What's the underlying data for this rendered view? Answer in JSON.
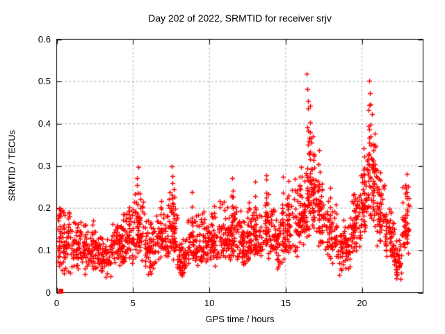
{
  "chart_data": {
    "type": "scatter",
    "title": "Day 202 of 2022, SRMTID for receiver srjv",
    "xlabel": "GPS time / hours",
    "ylabel": "SRMTID / TECUs",
    "xlim": [
      0,
      24
    ],
    "ylim": [
      0,
      0.6
    ],
    "xtick_values": [
      0,
      5,
      10,
      15,
      20
    ],
    "xtick_labels": [
      "0",
      "5",
      "10",
      "15",
      "20"
    ],
    "ytick_values": [
      0,
      0.1,
      0.2,
      0.3,
      0.4,
      0.5,
      0.6
    ],
    "ytick_labels": [
      "0",
      "0.1",
      "0.2",
      "0.3",
      "0.4",
      "0.5",
      "0.6"
    ],
    "grid": "dashed",
    "legend": "none",
    "marker": "plus",
    "marker_color": "#ff0000",
    "grid_color": "#a6a6a6",
    "axis_color": "#000000",
    "background_color": "#ffffff",
    "origin_point": {
      "x": 0.25,
      "y": 0.004,
      "marker": "filled-square"
    },
    "seed": 7,
    "band_bins_fields": [
      "x_start",
      "x_end",
      "count",
      "y_min",
      "y_max",
      "y_mode"
    ],
    "band_bins": [
      [
        0.05,
        0.35,
        25,
        0.05,
        0.22,
        0.1
      ],
      [
        0.35,
        1.0,
        50,
        0.04,
        0.2,
        0.09
      ],
      [
        1.0,
        2.0,
        70,
        0.04,
        0.18,
        0.09
      ],
      [
        2.0,
        3.0,
        70,
        0.04,
        0.17,
        0.08
      ],
      [
        3.0,
        3.6,
        40,
        0.03,
        0.14,
        0.08
      ],
      [
        3.6,
        4.4,
        55,
        0.05,
        0.18,
        0.1
      ],
      [
        4.4,
        5.1,
        50,
        0.06,
        0.22,
        0.12
      ],
      [
        5.1,
        5.7,
        45,
        0.06,
        0.26,
        0.13
      ],
      [
        5.7,
        6.5,
        55,
        0.04,
        0.18,
        0.09
      ],
      [
        6.5,
        7.3,
        55,
        0.06,
        0.22,
        0.11
      ],
      [
        7.3,
        7.9,
        45,
        0.06,
        0.26,
        0.12
      ],
      [
        7.9,
        8.6,
        45,
        0.03,
        0.15,
        0.08
      ],
      [
        8.6,
        9.6,
        70,
        0.05,
        0.2,
        0.1
      ],
      [
        9.6,
        10.6,
        70,
        0.06,
        0.2,
        0.11
      ],
      [
        10.6,
        11.4,
        60,
        0.07,
        0.22,
        0.12
      ],
      [
        11.4,
        11.8,
        35,
        0.08,
        0.24,
        0.14
      ],
      [
        11.8,
        12.6,
        60,
        0.06,
        0.2,
        0.11
      ],
      [
        12.6,
        13.5,
        65,
        0.07,
        0.21,
        0.12
      ],
      [
        13.5,
        14.1,
        45,
        0.07,
        0.24,
        0.13
      ],
      [
        14.1,
        15.0,
        60,
        0.05,
        0.22,
        0.11
      ],
      [
        15.0,
        15.9,
        60,
        0.08,
        0.28,
        0.14
      ],
      [
        15.9,
        16.4,
        45,
        0.1,
        0.32,
        0.17
      ],
      [
        16.4,
        17.0,
        50,
        0.12,
        0.38,
        0.2
      ],
      [
        17.0,
        17.6,
        45,
        0.1,
        0.32,
        0.17
      ],
      [
        17.6,
        18.4,
        55,
        0.06,
        0.24,
        0.12
      ],
      [
        18.4,
        19.2,
        55,
        0.04,
        0.18,
        0.1
      ],
      [
        19.2,
        19.9,
        55,
        0.08,
        0.26,
        0.15
      ],
      [
        19.9,
        20.3,
        35,
        0.12,
        0.34,
        0.2
      ],
      [
        20.3,
        20.9,
        45,
        0.15,
        0.42,
        0.24
      ],
      [
        20.9,
        21.5,
        45,
        0.1,
        0.3,
        0.18
      ],
      [
        21.5,
        22.1,
        45,
        0.06,
        0.22,
        0.12
      ],
      [
        22.1,
        22.6,
        35,
        0.03,
        0.14,
        0.08
      ],
      [
        22.6,
        23.1,
        35,
        0.08,
        0.26,
        0.15
      ]
    ],
    "stacks_fields": [
      "x",
      "y_bottom",
      "y_top",
      "count"
    ],
    "stacks": [
      [
        0.15,
        0.07,
        0.21,
        8
      ],
      [
        0.45,
        0.08,
        0.2,
        7
      ],
      [
        1.35,
        0.05,
        0.16,
        7
      ],
      [
        2.4,
        0.07,
        0.19,
        7
      ],
      [
        3.0,
        0.05,
        0.13,
        6
      ],
      [
        4.3,
        0.08,
        0.2,
        8
      ],
      [
        4.75,
        0.1,
        0.22,
        7
      ],
      [
        5.3,
        0.12,
        0.31,
        10
      ],
      [
        5.45,
        0.1,
        0.26,
        8
      ],
      [
        6.1,
        0.05,
        0.14,
        6
      ],
      [
        6.85,
        0.1,
        0.23,
        8
      ],
      [
        7.55,
        0.14,
        0.31,
        10
      ],
      [
        7.7,
        0.1,
        0.27,
        8
      ],
      [
        8.1,
        0.04,
        0.12,
        6
      ],
      [
        8.9,
        0.08,
        0.25,
        8
      ],
      [
        9.6,
        0.08,
        0.2,
        7
      ],
      [
        10.3,
        0.08,
        0.21,
        7
      ],
      [
        11.5,
        0.12,
        0.28,
        10
      ],
      [
        12.2,
        0.07,
        0.18,
        7
      ],
      [
        12.55,
        0.08,
        0.22,
        7
      ],
      [
        13.0,
        0.1,
        0.27,
        9
      ],
      [
        13.75,
        0.12,
        0.3,
        10
      ],
      [
        14.5,
        0.05,
        0.16,
        6
      ],
      [
        14.8,
        0.1,
        0.28,
        9
      ],
      [
        15.2,
        0.12,
        0.27,
        9
      ],
      [
        16.0,
        0.14,
        0.31,
        9
      ],
      [
        16.45,
        0.2,
        0.53,
        14
      ],
      [
        16.6,
        0.18,
        0.46,
        12
      ],
      [
        16.75,
        0.16,
        0.38,
        10
      ],
      [
        17.2,
        0.14,
        0.35,
        10
      ],
      [
        17.9,
        0.1,
        0.26,
        8
      ],
      [
        18.55,
        0.04,
        0.15,
        7
      ],
      [
        19.5,
        0.1,
        0.24,
        9
      ],
      [
        20.1,
        0.16,
        0.36,
        10
      ],
      [
        20.45,
        0.22,
        0.52,
        14
      ],
      [
        20.6,
        0.2,
        0.47,
        12
      ],
      [
        20.8,
        0.18,
        0.4,
        10
      ],
      [
        21.2,
        0.12,
        0.3,
        9
      ],
      [
        21.9,
        0.08,
        0.2,
        7
      ],
      [
        22.25,
        0.03,
        0.1,
        6
      ],
      [
        22.9,
        0.12,
        0.3,
        9
      ],
      [
        23.0,
        0.15,
        0.26,
        6
      ]
    ]
  }
}
